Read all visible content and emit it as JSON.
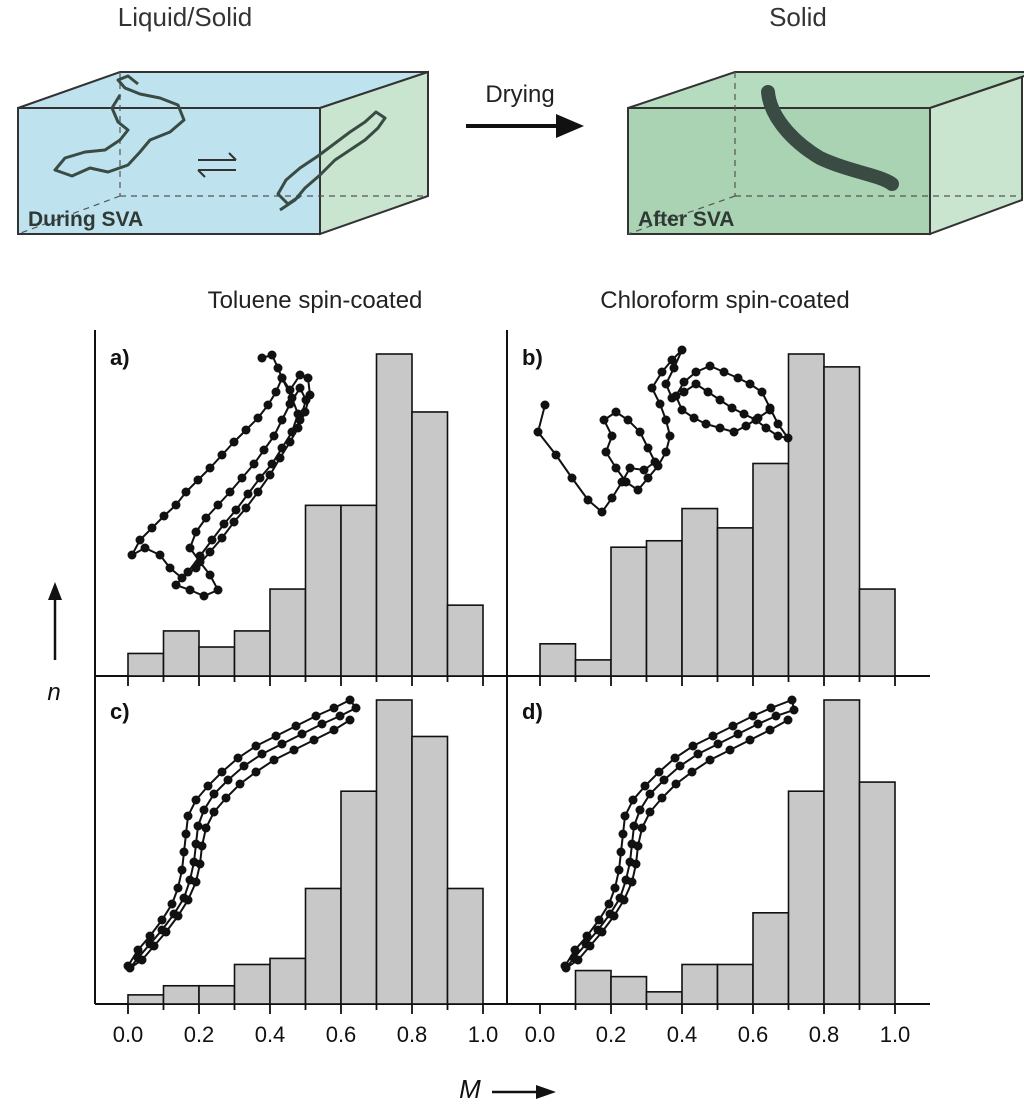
{
  "schematic": {
    "left_title": "Liquid/Solid",
    "right_title": "Solid",
    "left_label": "During SVA",
    "right_label": "After SVA",
    "arrow_label": "Drying",
    "colors": {
      "liquid": "#bfe2ef",
      "solid": "#c9e5cf",
      "solid_dark": "#a9d3b2",
      "polymer": "#3a4b44"
    }
  },
  "column_titles": [
    "Toluene spin-coated",
    "Chloroform spin-coated"
  ],
  "axes": {
    "x_label": "M",
    "y_label": "n",
    "x_ticks": [
      "0.0",
      "0.2",
      "0.4",
      "0.6",
      "0.8",
      "1.0"
    ]
  },
  "chart_data": [
    {
      "type": "bar",
      "panel_label": "a)",
      "bin_width": 0.1,
      "xlim": [
        -0.05,
        1.1
      ],
      "ylim": [
        0,
        1
      ],
      "x": [
        0.05,
        0.15,
        0.25,
        0.35,
        0.45,
        0.55,
        0.65,
        0.75,
        0.85,
        0.95
      ],
      "values": [
        0.07,
        0.14,
        0.09,
        0.14,
        0.27,
        0.53,
        0.53,
        1.0,
        0.82,
        0.22
      ]
    },
    {
      "type": "bar",
      "panel_label": "b)",
      "bin_width": 0.1,
      "xlim": [
        -0.05,
        1.1
      ],
      "ylim": [
        0,
        1
      ],
      "x": [
        0.05,
        0.15,
        0.25,
        0.35,
        0.45,
        0.55,
        0.65,
        0.75,
        0.85,
        0.95
      ],
      "values": [
        0.1,
        0.05,
        0.4,
        0.42,
        0.52,
        0.46,
        0.66,
        1.0,
        0.96,
        0.27
      ]
    },
    {
      "type": "bar",
      "panel_label": "c)",
      "bin_width": 0.1,
      "xlim": [
        -0.05,
        1.1
      ],
      "ylim": [
        0,
        1
      ],
      "x": [
        0.05,
        0.15,
        0.25,
        0.35,
        0.45,
        0.55,
        0.65,
        0.75,
        0.85,
        0.95
      ],
      "values": [
        0.03,
        0.06,
        0.06,
        0.13,
        0.15,
        0.38,
        0.7,
        1.0,
        0.88,
        0.38
      ]
    },
    {
      "type": "bar",
      "panel_label": "d)",
      "bin_width": 0.1,
      "xlim": [
        -0.05,
        1.1
      ],
      "ylim": [
        0,
        1
      ],
      "x": [
        0.05,
        0.15,
        0.25,
        0.35,
        0.45,
        0.55,
        0.65,
        0.75,
        0.85,
        0.95
      ],
      "values": [
        0.0,
        0.11,
        0.09,
        0.04,
        0.13,
        0.13,
        0.3,
        0.7,
        1.0,
        0.73
      ]
    }
  ]
}
